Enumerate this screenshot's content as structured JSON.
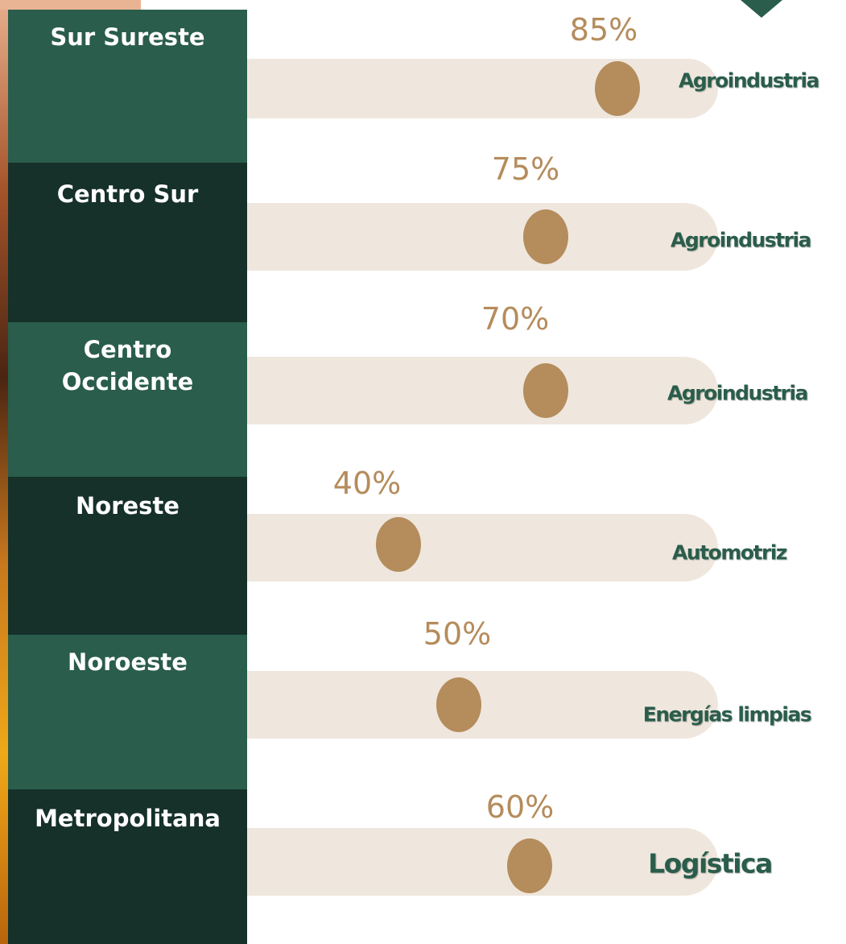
{
  "rows": [
    {
      "region": "Sur Sureste",
      "percent": "85%",
      "sector": "Agroindustria"
    },
    {
      "region": "Centro Sur",
      "percent": "75%",
      "sector": "Agroindustria"
    },
    {
      "region": "Centro Occidente",
      "percent": "70%",
      "sector": "Agroindustria"
    },
    {
      "region": "Noreste",
      "percent": "40%",
      "sector": "Automotriz"
    },
    {
      "region": "Noroeste",
      "percent": "50%",
      "sector": "Energías limpias"
    },
    {
      "region": "Metropolitana",
      "percent": "60%",
      "sector": "Logística"
    }
  ]
}
